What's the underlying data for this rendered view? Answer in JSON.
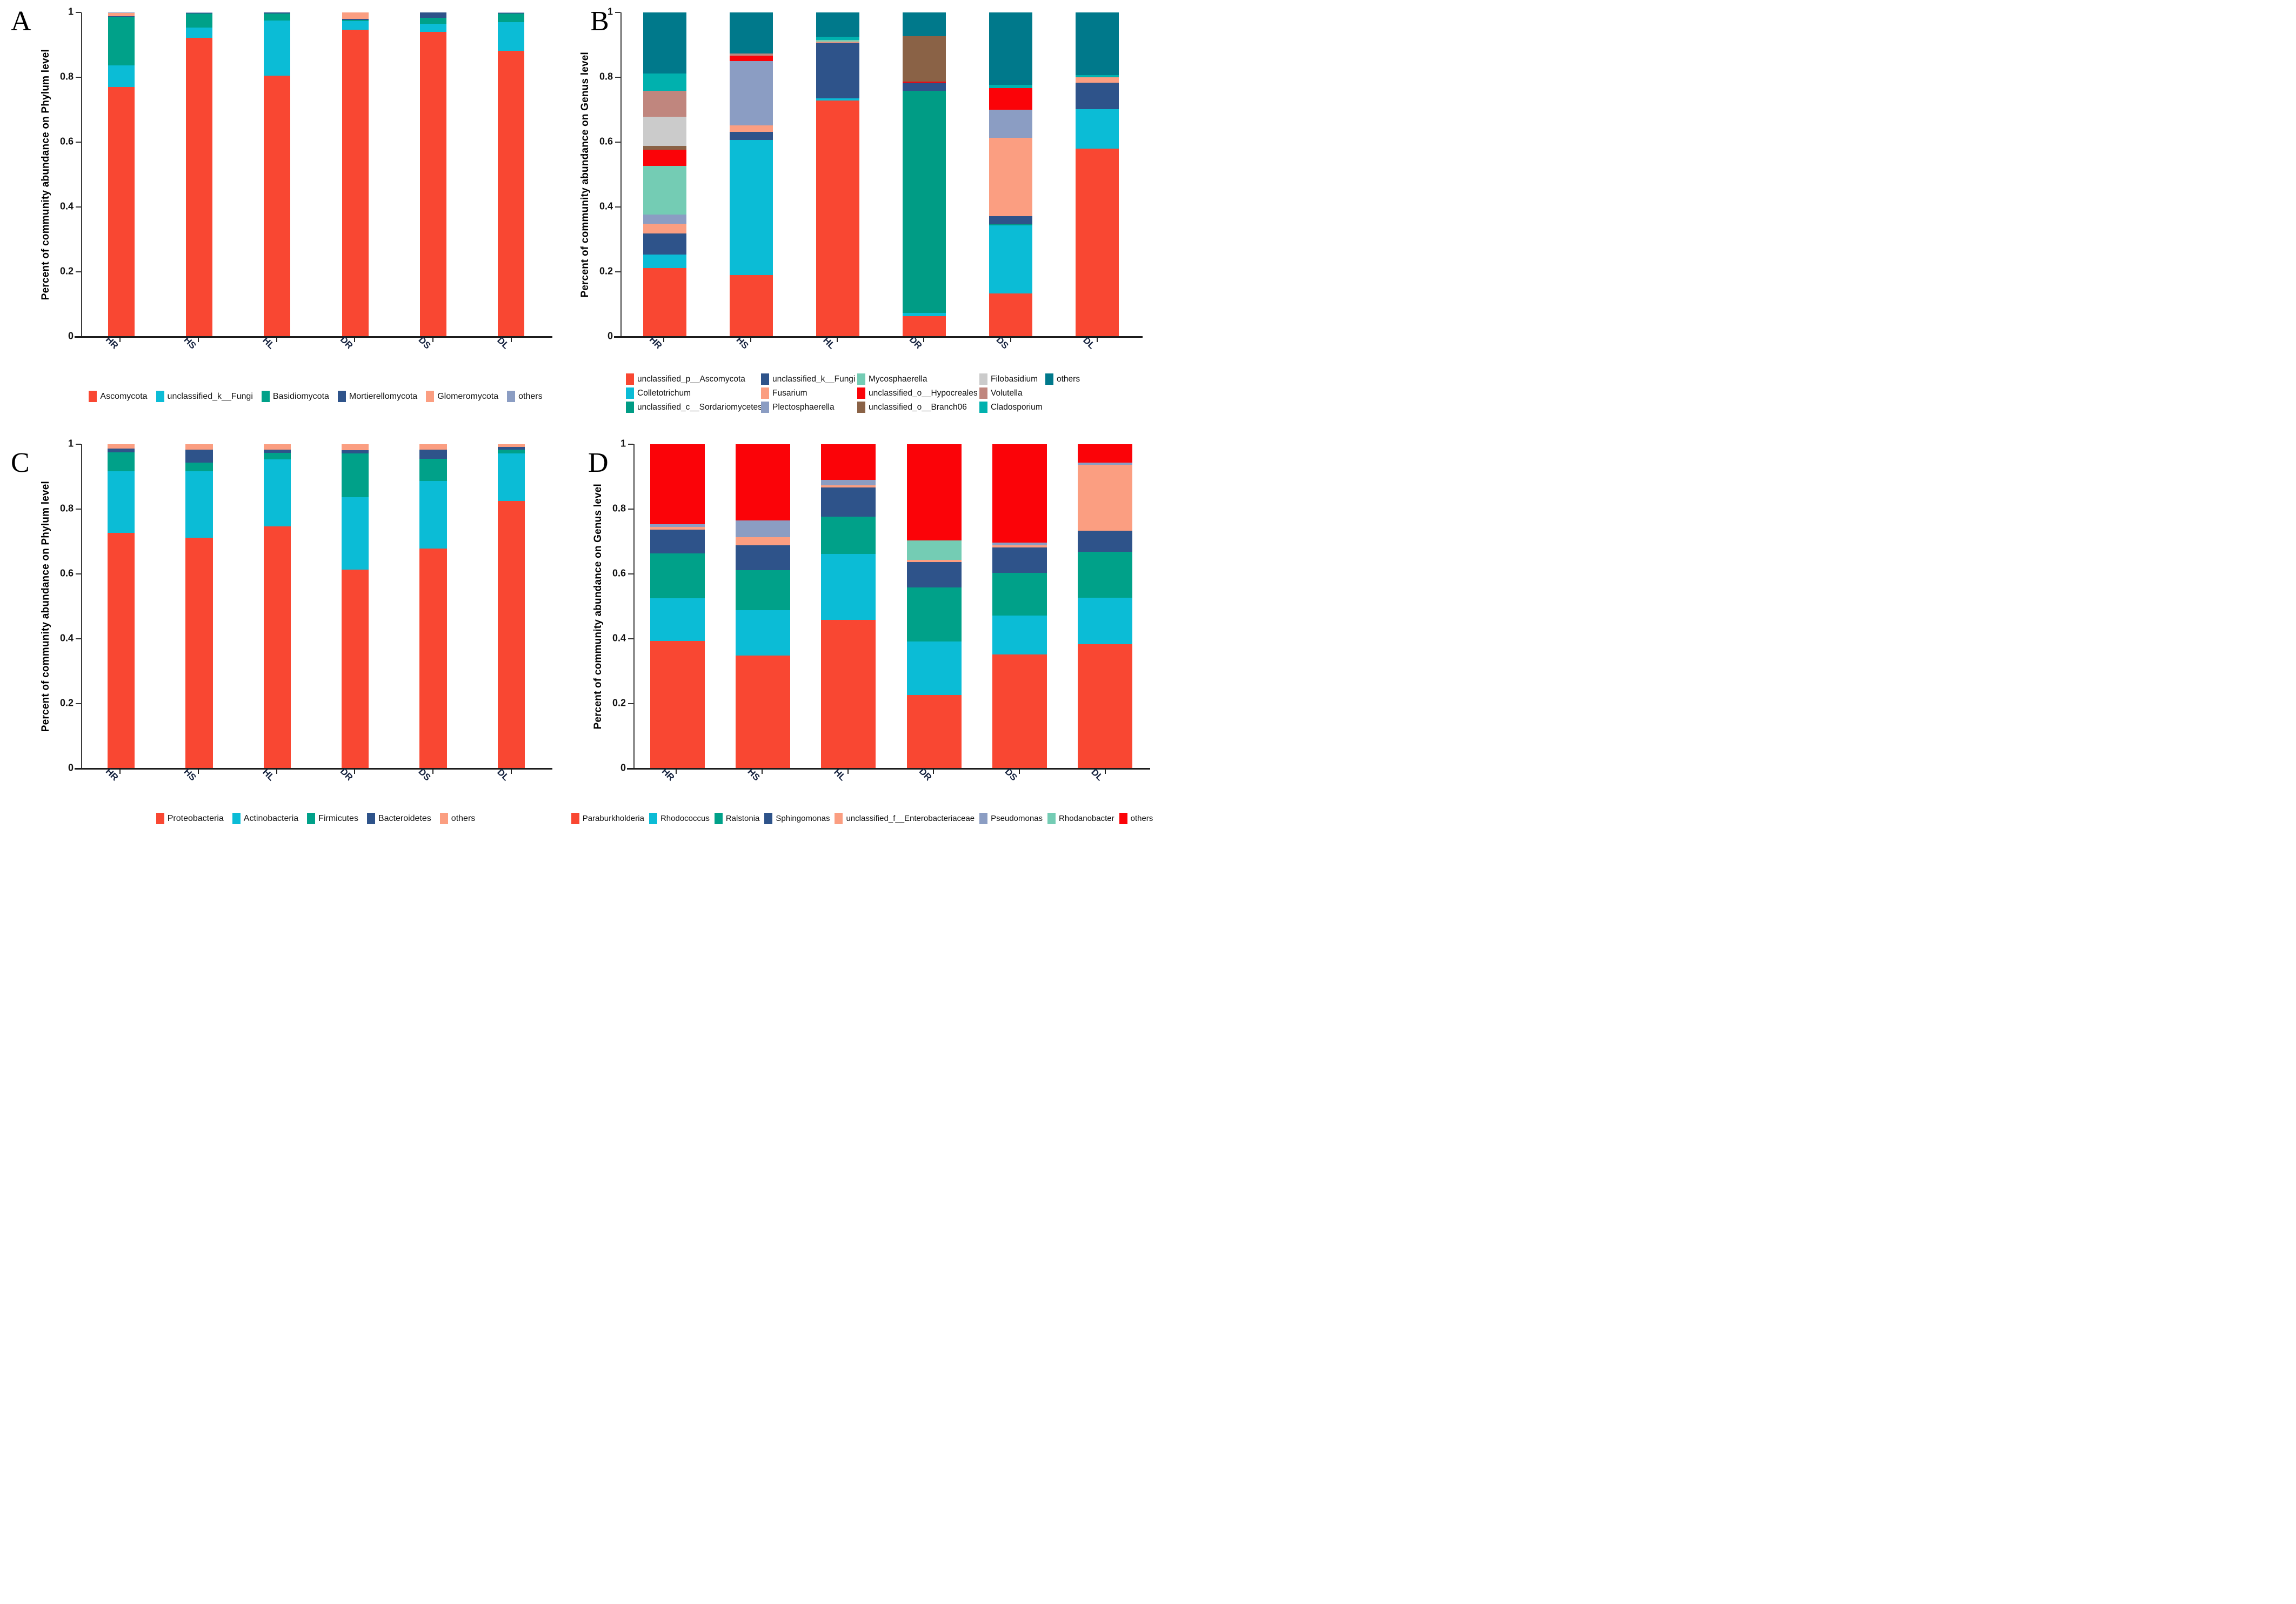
{
  "chart_data": [
    {
      "type": "bar",
      "subtype": "stacked-percent",
      "panel_label": "A",
      "ylabel": "Percent of community abundance on Phylum level",
      "xlabel": "",
      "ylim": [
        0,
        1
      ],
      "grid": false,
      "legend_position": "bottom",
      "categories": [
        "HR",
        "HS",
        "HL",
        "DR",
        "DS",
        "DL"
      ],
      "yticks": [
        {
          "value": 1,
          "label": "1"
        },
        {
          "value": 0.8,
          "label": "0.8"
        },
        {
          "value": 0.6,
          "label": "0.6"
        },
        {
          "value": 0.4,
          "label": "0.4"
        },
        {
          "value": 0.2,
          "label": "0.2"
        },
        {
          "value": 0,
          "label": "0"
        }
      ],
      "bar_width_pct": 34,
      "series": [
        {
          "name": "Ascomycota",
          "color": "#F94732",
          "values": [
            0.77,
            0.922,
            0.805,
            0.947,
            0.94,
            0.881
          ]
        },
        {
          "name": "unclassified_k__Fungi",
          "color": "#0BBCD6",
          "values": [
            0.066,
            0.031,
            0.17,
            0.027,
            0.025,
            0.089
          ]
        },
        {
          "name": "Basidiomycota",
          "color": "#00A189",
          "values": [
            0.15,
            0.043,
            0.021,
            0.003,
            0.018,
            0.026
          ]
        },
        {
          "name": "Mortierellomycota",
          "color": "#2E538A",
          "values": [
            0.002,
            0.003,
            0.004,
            0.003,
            0.017,
            0.003
          ]
        },
        {
          "name": "Glomeromycota",
          "color": "#FB9E81",
          "values": [
            0.01,
            0.0,
            0.0,
            0.02,
            0.0,
            0.0
          ]
        },
        {
          "name": "others",
          "color": "#8B9DC3",
          "values": [
            0.002,
            0.001,
            0.0,
            0.0,
            0.0,
            0.001
          ]
        }
      ],
      "legend_rows": [
        [
          "Ascomycota",
          "unclassified_k__Fungi",
          "Basidiomycota",
          "Mortierellomycota",
          "Glomeromycota",
          "others"
        ]
      ]
    },
    {
      "type": "bar",
      "subtype": "stacked-percent",
      "panel_label": "B",
      "ylabel": "Percent of community abundance on Genus level",
      "xlabel": "",
      "ylim": [
        0,
        1
      ],
      "grid": false,
      "legend_position": "bottom",
      "categories": [
        "HR",
        "HS",
        "HL",
        "DR",
        "DS",
        "DL"
      ],
      "yticks": [
        {
          "value": 1,
          "label": "1"
        },
        {
          "value": 0.8,
          "label": "0.8"
        },
        {
          "value": 0.6,
          "label": "0.6"
        },
        {
          "value": 0.4,
          "label": "0.4"
        },
        {
          "value": 0.2,
          "label": "0.2"
        },
        {
          "value": 0,
          "label": "0"
        }
      ],
      "bar_width_pct": 50,
      "series": [
        {
          "name": "unclassified_p__Ascomycota",
          "color": "#F94732",
          "values": [
            0.212,
            0.19,
            0.729,
            0.063,
            0.133,
            0.58
          ]
        },
        {
          "name": "Colletotrichum",
          "color": "#0BBCD6",
          "values": [
            0.042,
            0.417,
            0.006,
            0.01,
            0.21,
            0.122
          ]
        },
        {
          "name": "unclassified_c__Sordariomycetes",
          "color": "#009C85",
          "values": [
            0.0,
            0.0,
            0.0,
            0.685,
            0.004,
            0.0
          ]
        },
        {
          "name": "unclassified_k__Fungi",
          "color": "#2E538A",
          "values": [
            0.064,
            0.024,
            0.171,
            0.025,
            0.025,
            0.082
          ]
        },
        {
          "name": "Fusarium",
          "color": "#FB9E81",
          "values": [
            0.031,
            0.02,
            0.004,
            0.0,
            0.241,
            0.016
          ]
        },
        {
          "name": "Plectosphaerella",
          "color": "#8B9DC3",
          "values": [
            0.027,
            0.199,
            0.0,
            0.0,
            0.087,
            0.0
          ]
        },
        {
          "name": "Mycosphaerella",
          "color": "#74CCB4",
          "values": [
            0.15,
            0.0,
            0.005,
            0.0,
            0.0,
            0.0
          ]
        },
        {
          "name": "unclassified_o__Hypocreales",
          "color": "#FB0308",
          "values": [
            0.051,
            0.017,
            0.0,
            0.004,
            0.067,
            0.0
          ]
        },
        {
          "name": "unclassified_o__Branch06",
          "color": "#8A6246",
          "values": [
            0.011,
            0.0,
            0.0,
            0.14,
            0.0,
            0.0
          ]
        },
        {
          "name": "Filobasidium",
          "color": "#CBCBCB",
          "values": [
            0.091,
            0.0,
            0.0,
            0.0,
            0.0,
            0.0
          ]
        },
        {
          "name": "Volutella",
          "color": "#C0867E",
          "values": [
            0.079,
            0.007,
            0.0,
            0.0,
            0.0,
            0.0
          ]
        },
        {
          "name": "Cladosporium",
          "color": "#00B1AE",
          "values": [
            0.054,
            0.0,
            0.01,
            0.0,
            0.009,
            0.006
          ]
        },
        {
          "name": "others",
          "color": "#00798B",
          "values": [
            0.188,
            0.126,
            0.075,
            0.073,
            0.224,
            0.194
          ]
        }
      ],
      "legend_rows": [
        [
          "unclassified_p__Ascomycota",
          "unclassified_k__Fungi",
          "Mycosphaerella",
          "Filobasidium",
          "others"
        ],
        [
          "Colletotrichum",
          "Fusarium",
          "unclassified_o__Hypocreales",
          "Volutella"
        ],
        [
          "unclassified_c__Sordariomycetes",
          "Plectosphaerella",
          "unclassified_o__Branch06",
          "Cladosporium"
        ]
      ]
    },
    {
      "type": "bar",
      "subtype": "stacked-percent",
      "panel_label": "C",
      "ylabel": "Percent of community abundance on Phylum level",
      "xlabel": "",
      "ylim": [
        0,
        1
      ],
      "grid": false,
      "legend_position": "bottom",
      "categories": [
        "HR",
        "HS",
        "HL",
        "DR",
        "DS",
        "DL"
      ],
      "yticks": [
        {
          "value": 1,
          "label": "1"
        },
        {
          "value": 0.8,
          "label": "0.8"
        },
        {
          "value": 0.6,
          "label": "0.6"
        },
        {
          "value": 0.4,
          "label": "0.4"
        },
        {
          "value": 0.2,
          "label": "0.2"
        },
        {
          "value": 0,
          "label": "0"
        }
      ],
      "bar_width_pct": 35,
      "series": [
        {
          "name": "Proteobacteria",
          "color": "#F94732",
          "values": [
            0.726,
            0.712,
            0.746,
            0.614,
            0.679,
            0.825
          ]
        },
        {
          "name": "Actinobacteria",
          "color": "#0BBCD6",
          "values": [
            0.19,
            0.204,
            0.207,
            0.222,
            0.208,
            0.147
          ]
        },
        {
          "name": "Firmicutes",
          "color": "#00A189",
          "values": [
            0.059,
            0.027,
            0.02,
            0.136,
            0.068,
            0.012
          ]
        },
        {
          "name": "Bacteroidetes",
          "color": "#2E538A",
          "values": [
            0.011,
            0.041,
            0.01,
            0.01,
            0.029,
            0.008
          ]
        },
        {
          "name": "others",
          "color": "#FB9E81",
          "values": [
            0.014,
            0.016,
            0.017,
            0.018,
            0.016,
            0.008
          ]
        }
      ],
      "legend_rows": [
        [
          "Proteobacteria",
          "Actinobacteria",
          "Firmicutes",
          "Bacteroidetes",
          "others"
        ]
      ]
    },
    {
      "type": "bar",
      "subtype": "stacked-percent",
      "panel_label": "D",
      "ylabel": "Percent of community abundance on Genus level",
      "xlabel": "",
      "ylim": [
        0,
        1
      ],
      "grid": false,
      "legend_position": "bottom",
      "categories": [
        "HR",
        "HS",
        "HL",
        "DR",
        "DS",
        "DL"
      ],
      "yticks": [
        {
          "value": 1,
          "label": "1"
        },
        {
          "value": 0.8,
          "label": "0.8"
        },
        {
          "value": 0.6,
          "label": "0.6"
        },
        {
          "value": 0.4,
          "label": "0.4"
        },
        {
          "value": 0.2,
          "label": "0.2"
        },
        {
          "value": 0,
          "label": "0"
        }
      ],
      "bar_width_pct": 64,
      "series": [
        {
          "name": "Paraburkholderia",
          "color": "#F94732",
          "values": [
            0.394,
            0.349,
            0.458,
            0.226,
            0.351,
            0.384
          ]
        },
        {
          "name": "Rhodococcus",
          "color": "#0BBCD6",
          "values": [
            0.131,
            0.14,
            0.203,
            0.166,
            0.12,
            0.143
          ]
        },
        {
          "name": "Ralstonia",
          "color": "#00A189",
          "values": [
            0.139,
            0.122,
            0.116,
            0.166,
            0.133,
            0.141
          ]
        },
        {
          "name": "Sphingomonas",
          "color": "#2E538A",
          "values": [
            0.073,
            0.077,
            0.089,
            0.079,
            0.078,
            0.065
          ]
        },
        {
          "name": "unclassified_f__Enterobacteriaceae",
          "color": "#FB9E81",
          "values": [
            0.008,
            0.025,
            0.008,
            0.007,
            0.007,
            0.204
          ]
        },
        {
          "name": "Pseudomonas",
          "color": "#8B9DC3",
          "values": [
            0.008,
            0.052,
            0.016,
            0.0,
            0.007,
            0.007
          ]
        },
        {
          "name": "Rhodanobacter",
          "color": "#74CCB4",
          "values": [
            0.0,
            0.0,
            0.0,
            0.059,
            0.0,
            0.0
          ]
        },
        {
          "name": "others",
          "color": "#FB0308",
          "values": [
            0.247,
            0.235,
            0.11,
            0.297,
            0.304,
            0.056
          ]
        }
      ],
      "legend_rows": [
        [
          "Paraburkholderia",
          "Rhodococcus",
          "Ralstonia",
          "Sphingomonas",
          "unclassified_f__Enterobacteriaceae",
          "Pseudomonas",
          "Rhodanobacter",
          "others"
        ]
      ]
    }
  ]
}
